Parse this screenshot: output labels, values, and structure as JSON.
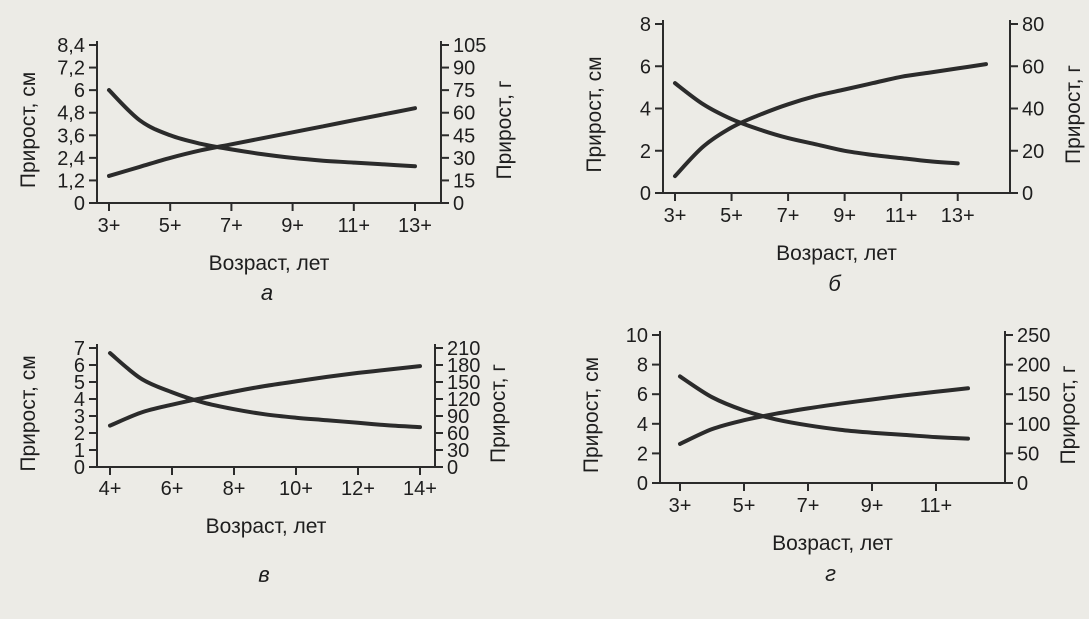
{
  "background_text": {
    "line1": "...",
    "line2": "...",
    "line3": "..."
  },
  "colors": {
    "ink": "#2b2b2b",
    "paper": "#ecebe6"
  },
  "chart_data": [
    {
      "panel": "а",
      "type": "line",
      "xlabel": "Возраст, лет",
      "ylabel_left": "Прирост, см",
      "ylabel_right": "Прирост, г",
      "x_ticks": [
        "3+",
        "5+",
        "7+",
        "9+",
        "11+",
        "13+"
      ],
      "x_range": [
        3,
        13
      ],
      "y_left_ticks": [
        "0",
        "1,2",
        "2,4",
        "3,6",
        "4,8",
        "6",
        "7,2",
        "8,4"
      ],
      "y_left_range": [
        0,
        8.4
      ],
      "y_right_ticks": [
        "0",
        "15",
        "30",
        "45",
        "60",
        "75",
        "90",
        "105"
      ],
      "y_right_range": [
        0,
        105
      ],
      "series": [
        {
          "axis": "left",
          "x": [
            3,
            4,
            5,
            6,
            7,
            8,
            9,
            10,
            11,
            12,
            13
          ],
          "y": [
            6.0,
            4.4,
            3.6,
            3.15,
            2.85,
            2.6,
            2.4,
            2.25,
            2.15,
            2.05,
            1.95
          ]
        },
        {
          "axis": "right",
          "x": [
            3,
            4,
            5,
            6,
            7,
            8,
            9,
            10,
            11,
            12,
            13
          ],
          "y": [
            18,
            24,
            30,
            35,
            39,
            43,
            47,
            51,
            55,
            59,
            63
          ]
        }
      ]
    },
    {
      "panel": "б",
      "type": "line",
      "xlabel": "Возраст, лет",
      "ylabel_left": "Прирост, см",
      "ylabel_right": "Прирост, г",
      "x_ticks": [
        "3+",
        "5+",
        "7+",
        "9+",
        "11+",
        "13+"
      ],
      "x_range": [
        3,
        14
      ],
      "y_left_ticks": [
        "0",
        "2",
        "4",
        "6",
        "8"
      ],
      "y_left_range": [
        0,
        8
      ],
      "y_right_ticks": [
        "0",
        "20",
        "40",
        "60",
        "80"
      ],
      "y_right_range": [
        0,
        80
      ],
      "series": [
        {
          "axis": "left",
          "x": [
            3,
            4,
            5,
            6,
            7,
            8,
            9,
            10,
            11,
            12,
            13
          ],
          "y": [
            5.2,
            4.2,
            3.5,
            3.0,
            2.6,
            2.3,
            2.0,
            1.8,
            1.65,
            1.5,
            1.4
          ]
        },
        {
          "axis": "right",
          "x": [
            3,
            4,
            5,
            6,
            7,
            8,
            9,
            10,
            11,
            12,
            13,
            14
          ],
          "y": [
            8,
            22,
            31,
            37,
            42,
            46,
            49,
            52,
            55,
            57,
            59,
            61
          ]
        }
      ]
    },
    {
      "panel": "в",
      "type": "line",
      "xlabel": "Возраст, лет",
      "ylabel_left": "Прирост, см",
      "ylabel_right": "Прирост, г",
      "x_ticks": [
        "4+",
        "6+",
        "8+",
        "10+",
        "12+",
        "14+"
      ],
      "x_range": [
        4,
        14
      ],
      "y_left_ticks": [
        "0",
        "1",
        "2",
        "3",
        "4",
        "5",
        "6",
        "7"
      ],
      "y_left_range": [
        0,
        7
      ],
      "y_right_ticks": [
        "0",
        "30",
        "60",
        "90",
        "120",
        "150",
        "180",
        "210"
      ],
      "y_right_range": [
        0,
        210
      ],
      "series": [
        {
          "axis": "left",
          "x": [
            4,
            5,
            6,
            7,
            8,
            9,
            10,
            11,
            12,
            13,
            14
          ],
          "y": [
            6.7,
            5.2,
            4.4,
            3.8,
            3.4,
            3.1,
            2.9,
            2.75,
            2.6,
            2.45,
            2.35
          ]
        },
        {
          "axis": "right",
          "x": [
            4,
            5,
            6,
            7,
            8,
            9,
            10,
            11,
            12,
            13,
            14
          ],
          "y": [
            73,
            96,
            110,
            122,
            133,
            143,
            151,
            159,
            166,
            172,
            178
          ]
        }
      ]
    },
    {
      "panel": "г",
      "type": "line",
      "xlabel": "Возраст, лет",
      "ylabel_left": "Прирост, см",
      "ylabel_right": "Прирост, г",
      "x_ticks": [
        "3+",
        "5+",
        "7+",
        "9+",
        "11+"
      ],
      "x_range": [
        3,
        12
      ],
      "y_left_ticks": [
        "0",
        "2",
        "4",
        "6",
        "8",
        "10"
      ],
      "y_left_range": [
        0,
        10
      ],
      "y_right_ticks": [
        "0",
        "50",
        "100",
        "150",
        "200",
        "250"
      ],
      "y_right_range": [
        0,
        250
      ],
      "series": [
        {
          "axis": "left",
          "x": [
            3,
            4,
            5,
            6,
            7,
            8,
            9,
            10,
            11,
            12
          ],
          "y": [
            7.2,
            5.8,
            4.9,
            4.3,
            3.9,
            3.6,
            3.4,
            3.25,
            3.1,
            3.0
          ]
        },
        {
          "axis": "right",
          "x": [
            3,
            4,
            5,
            6,
            7,
            8,
            9,
            10,
            11,
            12
          ],
          "y": [
            66,
            91,
            106,
            117,
            126,
            134,
            141,
            148,
            154,
            160
          ]
        }
      ]
    }
  ]
}
